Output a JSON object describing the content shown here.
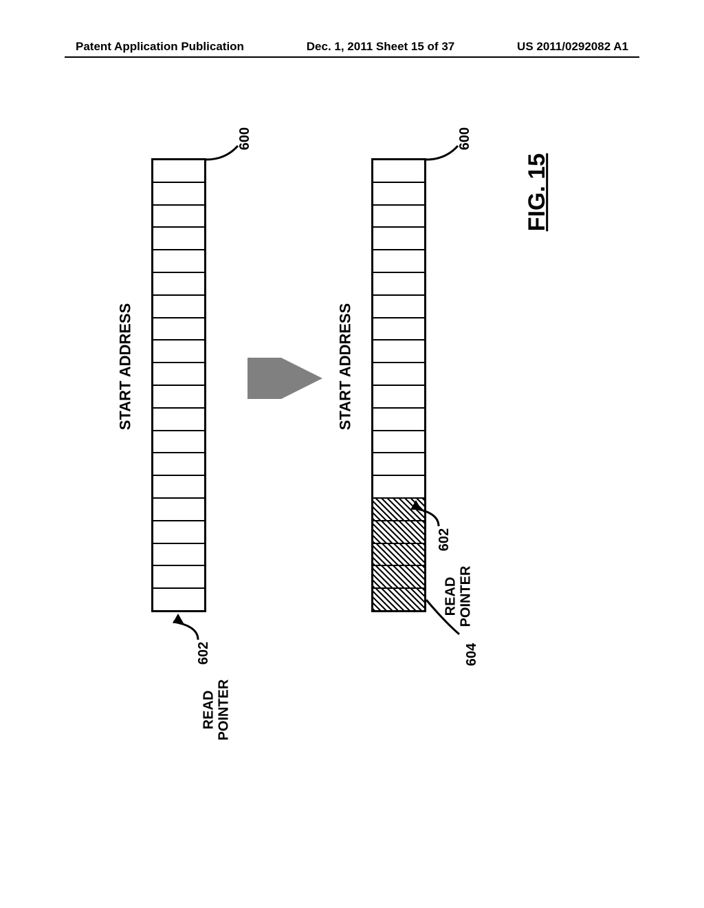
{
  "header": {
    "left": "Patent Application Publication",
    "center": "Dec. 1, 2011  Sheet 15 of 37",
    "right": "US 2011/0292082 A1"
  },
  "figure": {
    "label": "FIG. 15",
    "start_address_label": "START ADDRESS",
    "read_pointer_label": "READ\nPOINTER",
    "buffer_a": {
      "ref_num": "600",
      "num_cells": 20,
      "hatched_start": 0,
      "hatched_end": 0,
      "border_color": "#000000",
      "read_pointer_ref": "602",
      "read_pointer_cell_index": 0
    },
    "buffer_b": {
      "ref_num": "600",
      "num_cells": 20,
      "hatched_start": 0,
      "hatched_end": 5,
      "border_color": "#000000",
      "read_pointer_ref": "602",
      "read_pointer_cell_index": 5,
      "hatched_ref": "604"
    },
    "arrow_color": "#808080"
  }
}
